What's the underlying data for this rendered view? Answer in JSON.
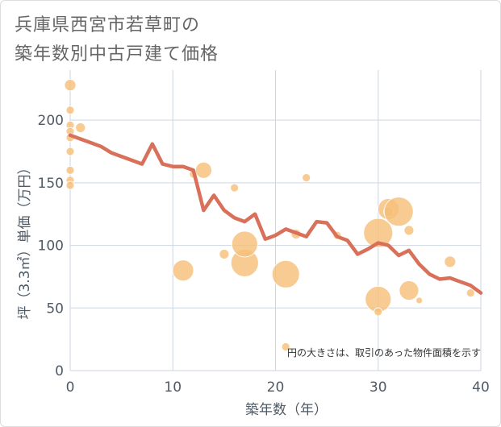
{
  "title": {
    "line1": "兵庫県西宮市若草町の",
    "line2": "築年数別中古戸建て価格"
  },
  "chart_data": {
    "type": "scatter",
    "xlabel": "築年数（年）",
    "ylabel": "坪（3.3㎡）単価（万円）",
    "xlim": [
      0,
      40
    ],
    "ylim": [
      0,
      240
    ],
    "xticks": [
      0,
      10,
      20,
      30,
      40
    ],
    "yticks": [
      0,
      50,
      100,
      150,
      200
    ],
    "grid": true,
    "annotation": "円の大きさは、取引のあった物件面積を示す",
    "colors": {
      "bubble": "#f5c07a",
      "line": "#d9705a",
      "grid": "#cdd6e0"
    },
    "series": [
      {
        "type": "bubble",
        "points": [
          {
            "x": 0,
            "y": 228,
            "size": 7
          },
          {
            "x": 0,
            "y": 208,
            "size": 5
          },
          {
            "x": 0,
            "y": 196,
            "size": 5
          },
          {
            "x": 0,
            "y": 191,
            "size": 5
          },
          {
            "x": 0,
            "y": 186,
            "size": 5
          },
          {
            "x": 0,
            "y": 175,
            "size": 5
          },
          {
            "x": 0,
            "y": 160,
            "size": 5
          },
          {
            "x": 0,
            "y": 152,
            "size": 5
          },
          {
            "x": 0,
            "y": 148,
            "size": 5
          },
          {
            "x": 1,
            "y": 194,
            "size": 6
          },
          {
            "x": 11,
            "y": 80,
            "size": 13
          },
          {
            "x": 12,
            "y": 157,
            "size": 5
          },
          {
            "x": 13,
            "y": 160,
            "size": 10
          },
          {
            "x": 15,
            "y": 93,
            "size": 6
          },
          {
            "x": 16,
            "y": 146,
            "size": 5
          },
          {
            "x": 17,
            "y": 86,
            "size": 17
          },
          {
            "x": 17,
            "y": 101,
            "size": 16
          },
          {
            "x": 21,
            "y": 77,
            "size": 17
          },
          {
            "x": 21,
            "y": 19,
            "size": 5
          },
          {
            "x": 22,
            "y": 109,
            "size": 6
          },
          {
            "x": 23,
            "y": 154,
            "size": 5
          },
          {
            "x": 26,
            "y": 108,
            "size": 5
          },
          {
            "x": 30,
            "y": 110,
            "size": 18
          },
          {
            "x": 30,
            "y": 57,
            "size": 16
          },
          {
            "x": 30,
            "y": 47,
            "size": 5
          },
          {
            "x": 31,
            "y": 129,
            "size": 13
          },
          {
            "x": 31,
            "y": 127,
            "size": 6
          },
          {
            "x": 32,
            "y": 127,
            "size": 18
          },
          {
            "x": 33,
            "y": 112,
            "size": 6
          },
          {
            "x": 33,
            "y": 64,
            "size": 12
          },
          {
            "x": 34,
            "y": 56,
            "size": 4
          },
          {
            "x": 37,
            "y": 87,
            "size": 7
          },
          {
            "x": 39,
            "y": 62,
            "size": 5
          }
        ]
      },
      {
        "type": "line",
        "x": [
          0,
          1,
          2,
          3,
          4,
          5,
          6,
          7,
          8,
          9,
          10,
          11,
          12,
          13,
          14,
          15,
          16,
          17,
          18,
          19,
          20,
          21,
          22,
          23,
          24,
          25,
          26,
          27,
          28,
          29,
          30,
          31,
          32,
          33,
          34,
          35,
          36,
          37,
          38,
          39,
          40
        ],
        "y": [
          188,
          185,
          182,
          179,
          174,
          171,
          168,
          165,
          181,
          165,
          163,
          163,
          160,
          128,
          140,
          128,
          122,
          119,
          125,
          105,
          108,
          113,
          110,
          107,
          119,
          118,
          107,
          104,
          93,
          97,
          102,
          100,
          92,
          96,
          85,
          77,
          73,
          74,
          71,
          68,
          62
        ]
      }
    ]
  }
}
